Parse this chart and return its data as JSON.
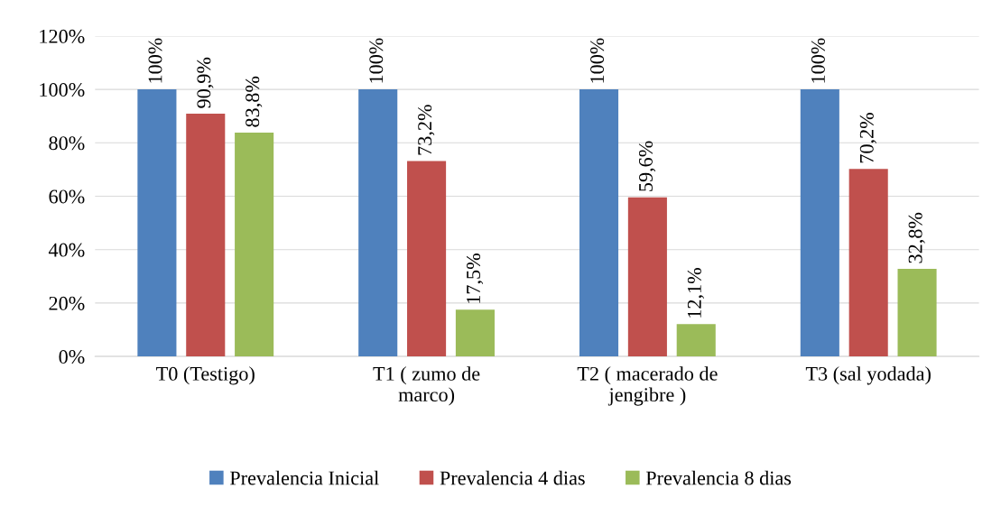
{
  "chart_data": {
    "type": "bar",
    "categories": [
      "T0 (Testigo)",
      "T1 ( zumo de\nmarco)",
      "T2 ( macerado de\njengibre )",
      "T3 (sal yodada)"
    ],
    "series": [
      {
        "name": "Prevalencia Inicial",
        "color": "#4f81bd",
        "values": [
          100,
          100,
          100,
          100
        ],
        "value_labels": [
          "100%",
          "100%",
          "100%",
          "100%"
        ]
      },
      {
        "name": "Prevalencia 4 dias",
        "color": "#c0504d",
        "values": [
          90.9,
          73.2,
          59.6,
          70.2
        ],
        "value_labels": [
          "90,9%",
          "73,2%",
          "59,6%",
          "70,2%"
        ]
      },
      {
        "name": "Prevalencia 8 dias",
        "color": "#9bbb59",
        "values": [
          83.8,
          17.5,
          12.1,
          32.8
        ],
        "value_labels": [
          "83,8%",
          "17,5%",
          "12,1%",
          "32,8%"
        ]
      }
    ],
    "ylim": [
      0,
      120
    ],
    "yticks": [
      {
        "value": 0,
        "label": "0%"
      },
      {
        "value": 20,
        "label": "20%"
      },
      {
        "value": 40,
        "label": "40%"
      },
      {
        "value": 60,
        "label": "60%"
      },
      {
        "value": 80,
        "label": "80%"
      },
      {
        "value": 100,
        "label": "100%"
      },
      {
        "value": 120,
        "label": "120%"
      }
    ],
    "grid": "y",
    "legend": "bottom"
  }
}
